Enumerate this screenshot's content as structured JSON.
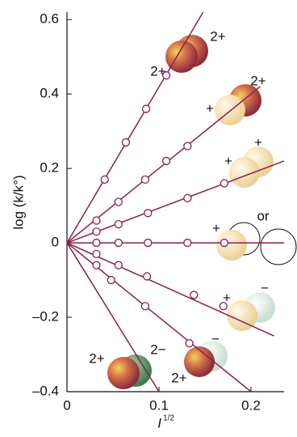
{
  "chart_data": {
    "type": "line",
    "ylabel": "log (k/k°)",
    "xlabel": "I",
    "xlabel_sup": "1/2",
    "xlim": [
      0,
      0.236
    ],
    "ylim": [
      -0.4,
      0.62
    ],
    "xticks": [
      0,
      0.1,
      0.2
    ],
    "yticks": [
      {
        "value": -0.4,
        "label": "–0.4"
      },
      {
        "value": -0.2,
        "label": "–0.2"
      },
      0,
      0.2,
      0.4,
      0.6
    ],
    "color": "#8c1d4f",
    "series": [
      {
        "x": [
          0.041,
          0.064,
          0.086,
          0.108
        ],
        "values": [
          0.17,
          0.27,
          0.36,
          0.45
        ],
        "line": {
          "x": [
            0,
            0.148
          ],
          "y": [
            0,
            0.62
          ]
        },
        "annotations": [
          "2+",
          "2+"
        ]
      },
      {
        "x": [
          0.032,
          0.056,
          0.085,
          0.108,
          0.131
        ],
        "values": [
          0.06,
          0.11,
          0.17,
          0.22,
          0.26
        ],
        "line": {
          "x": [
            0,
            0.21
          ],
          "y": [
            0,
            0.42
          ]
        },
        "annotations": [
          "2+",
          "+"
        ]
      },
      {
        "x": [
          0.032,
          0.056,
          0.088,
          0.131,
          0.171
        ],
        "values": [
          0.03,
          0.05,
          0.08,
          0.12,
          0.16
        ],
        "line": {
          "x": [
            0,
            0.236
          ],
          "y": [
            0,
            0.22
          ]
        },
        "annotations": [
          "+",
          "+"
        ]
      },
      {
        "x": [
          0.032,
          0.056,
          0.088,
          0.131,
          0.171
        ],
        "values": [
          0,
          0,
          0,
          0,
          0
        ],
        "line": {
          "x": [
            0,
            0.236
          ],
          "y": [
            0,
            0
          ]
        },
        "annotations": [
          "+",
          "or"
        ]
      },
      {
        "x": [
          0.032,
          0.056,
          0.087,
          0.138,
          0.17
        ],
        "values": [
          -0.03,
          -0.06,
          -0.09,
          -0.14,
          -0.17
        ],
        "line": {
          "x": [
            0,
            0.225
          ],
          "y": [
            0,
            -0.25
          ]
        },
        "annotations": [
          "+",
          "−"
        ]
      },
      {
        "x": [
          0.032,
          0.048,
          0.085,
          0.133
        ],
        "values": [
          -0.06,
          -0.1,
          -0.17,
          -0.27
        ],
        "line": {
          "x": [
            0,
            0.2
          ],
          "y": [
            0,
            -0.4
          ]
        },
        "annotations": [
          "−",
          "2+"
        ]
      },
      {
        "x": [],
        "values": [],
        "line": {
          "x": [
            0,
            0.1
          ],
          "y": [
            0,
            -0.4
          ]
        },
        "annotations": [
          "2+",
          "2−"
        ]
      }
    ]
  }
}
